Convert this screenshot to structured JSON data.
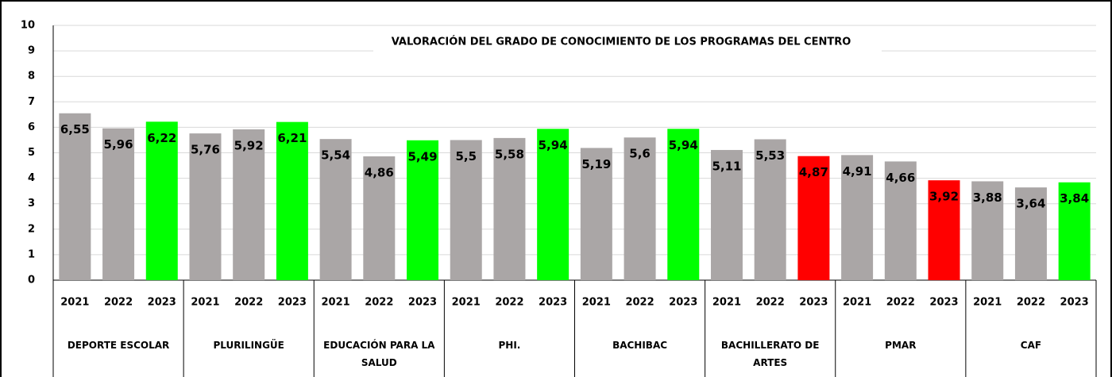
{
  "chart_data": {
    "type": "bar",
    "title": "VALORACIÓN DEL GRADO DE CONOCIMIENTO DE LOS PROGRAMAS DEL CENTRO",
    "categories": [
      "2021",
      "2022",
      "2023",
      "2021",
      "2022",
      "2023",
      "2021",
      "2022",
      "2023",
      "2021",
      "2022",
      "2023",
      "2021",
      "2022",
      "2023",
      "2021",
      "2022",
      "2023",
      "2021",
      "2022",
      "2023",
      "2021",
      "2022",
      "2023"
    ],
    "groups": [
      "DEPORTE ESCOLAR",
      "PLURILINGÜE",
      "EDUCACIÓN PARA LA SALUD",
      "PHI.",
      "BACHIBAC",
      "BACHILLERATO DE ARTES",
      "PMAR",
      "CAF"
    ],
    "values": [
      6.55,
      5.96,
      6.22,
      5.76,
      5.92,
      6.21,
      5.54,
      4.86,
      5.49,
      5.5,
      5.58,
      5.94,
      5.19,
      5.6,
      5.94,
      5.11,
      5.53,
      4.87,
      4.91,
      4.66,
      3.92,
      3.88,
      3.64,
      3.84
    ],
    "value_labels": [
      "6,55",
      "5,96",
      "6,22",
      "5,76",
      "5,92",
      "6,21",
      "5,54",
      "4,86",
      "5,49",
      "5,5",
      "5,58",
      "5,94",
      "5,19",
      "5,6",
      "5,94",
      "5,11",
      "5,53",
      "4,87",
      "4,91",
      "4,66",
      "3,92",
      "3,88",
      "3,64",
      "3,84"
    ],
    "colors": [
      "#aaa6a6",
      "#aaa6a6",
      "#00ff00",
      "#aaa6a6",
      "#aaa6a6",
      "#00ff00",
      "#aaa6a6",
      "#aaa6a6",
      "#00ff00",
      "#aaa6a6",
      "#aaa6a6",
      "#00ff00",
      "#aaa6a6",
      "#aaa6a6",
      "#00ff00",
      "#aaa6a6",
      "#aaa6a6",
      "#ff0000",
      "#aaa6a6",
      "#aaa6a6",
      "#ff0000",
      "#aaa6a6",
      "#aaa6a6",
      "#00ff00"
    ],
    "ylim": [
      0,
      10
    ],
    "yticks": [
      0,
      1,
      2,
      3,
      4,
      5,
      6,
      7,
      8,
      9,
      10
    ],
    "grid": true
  }
}
